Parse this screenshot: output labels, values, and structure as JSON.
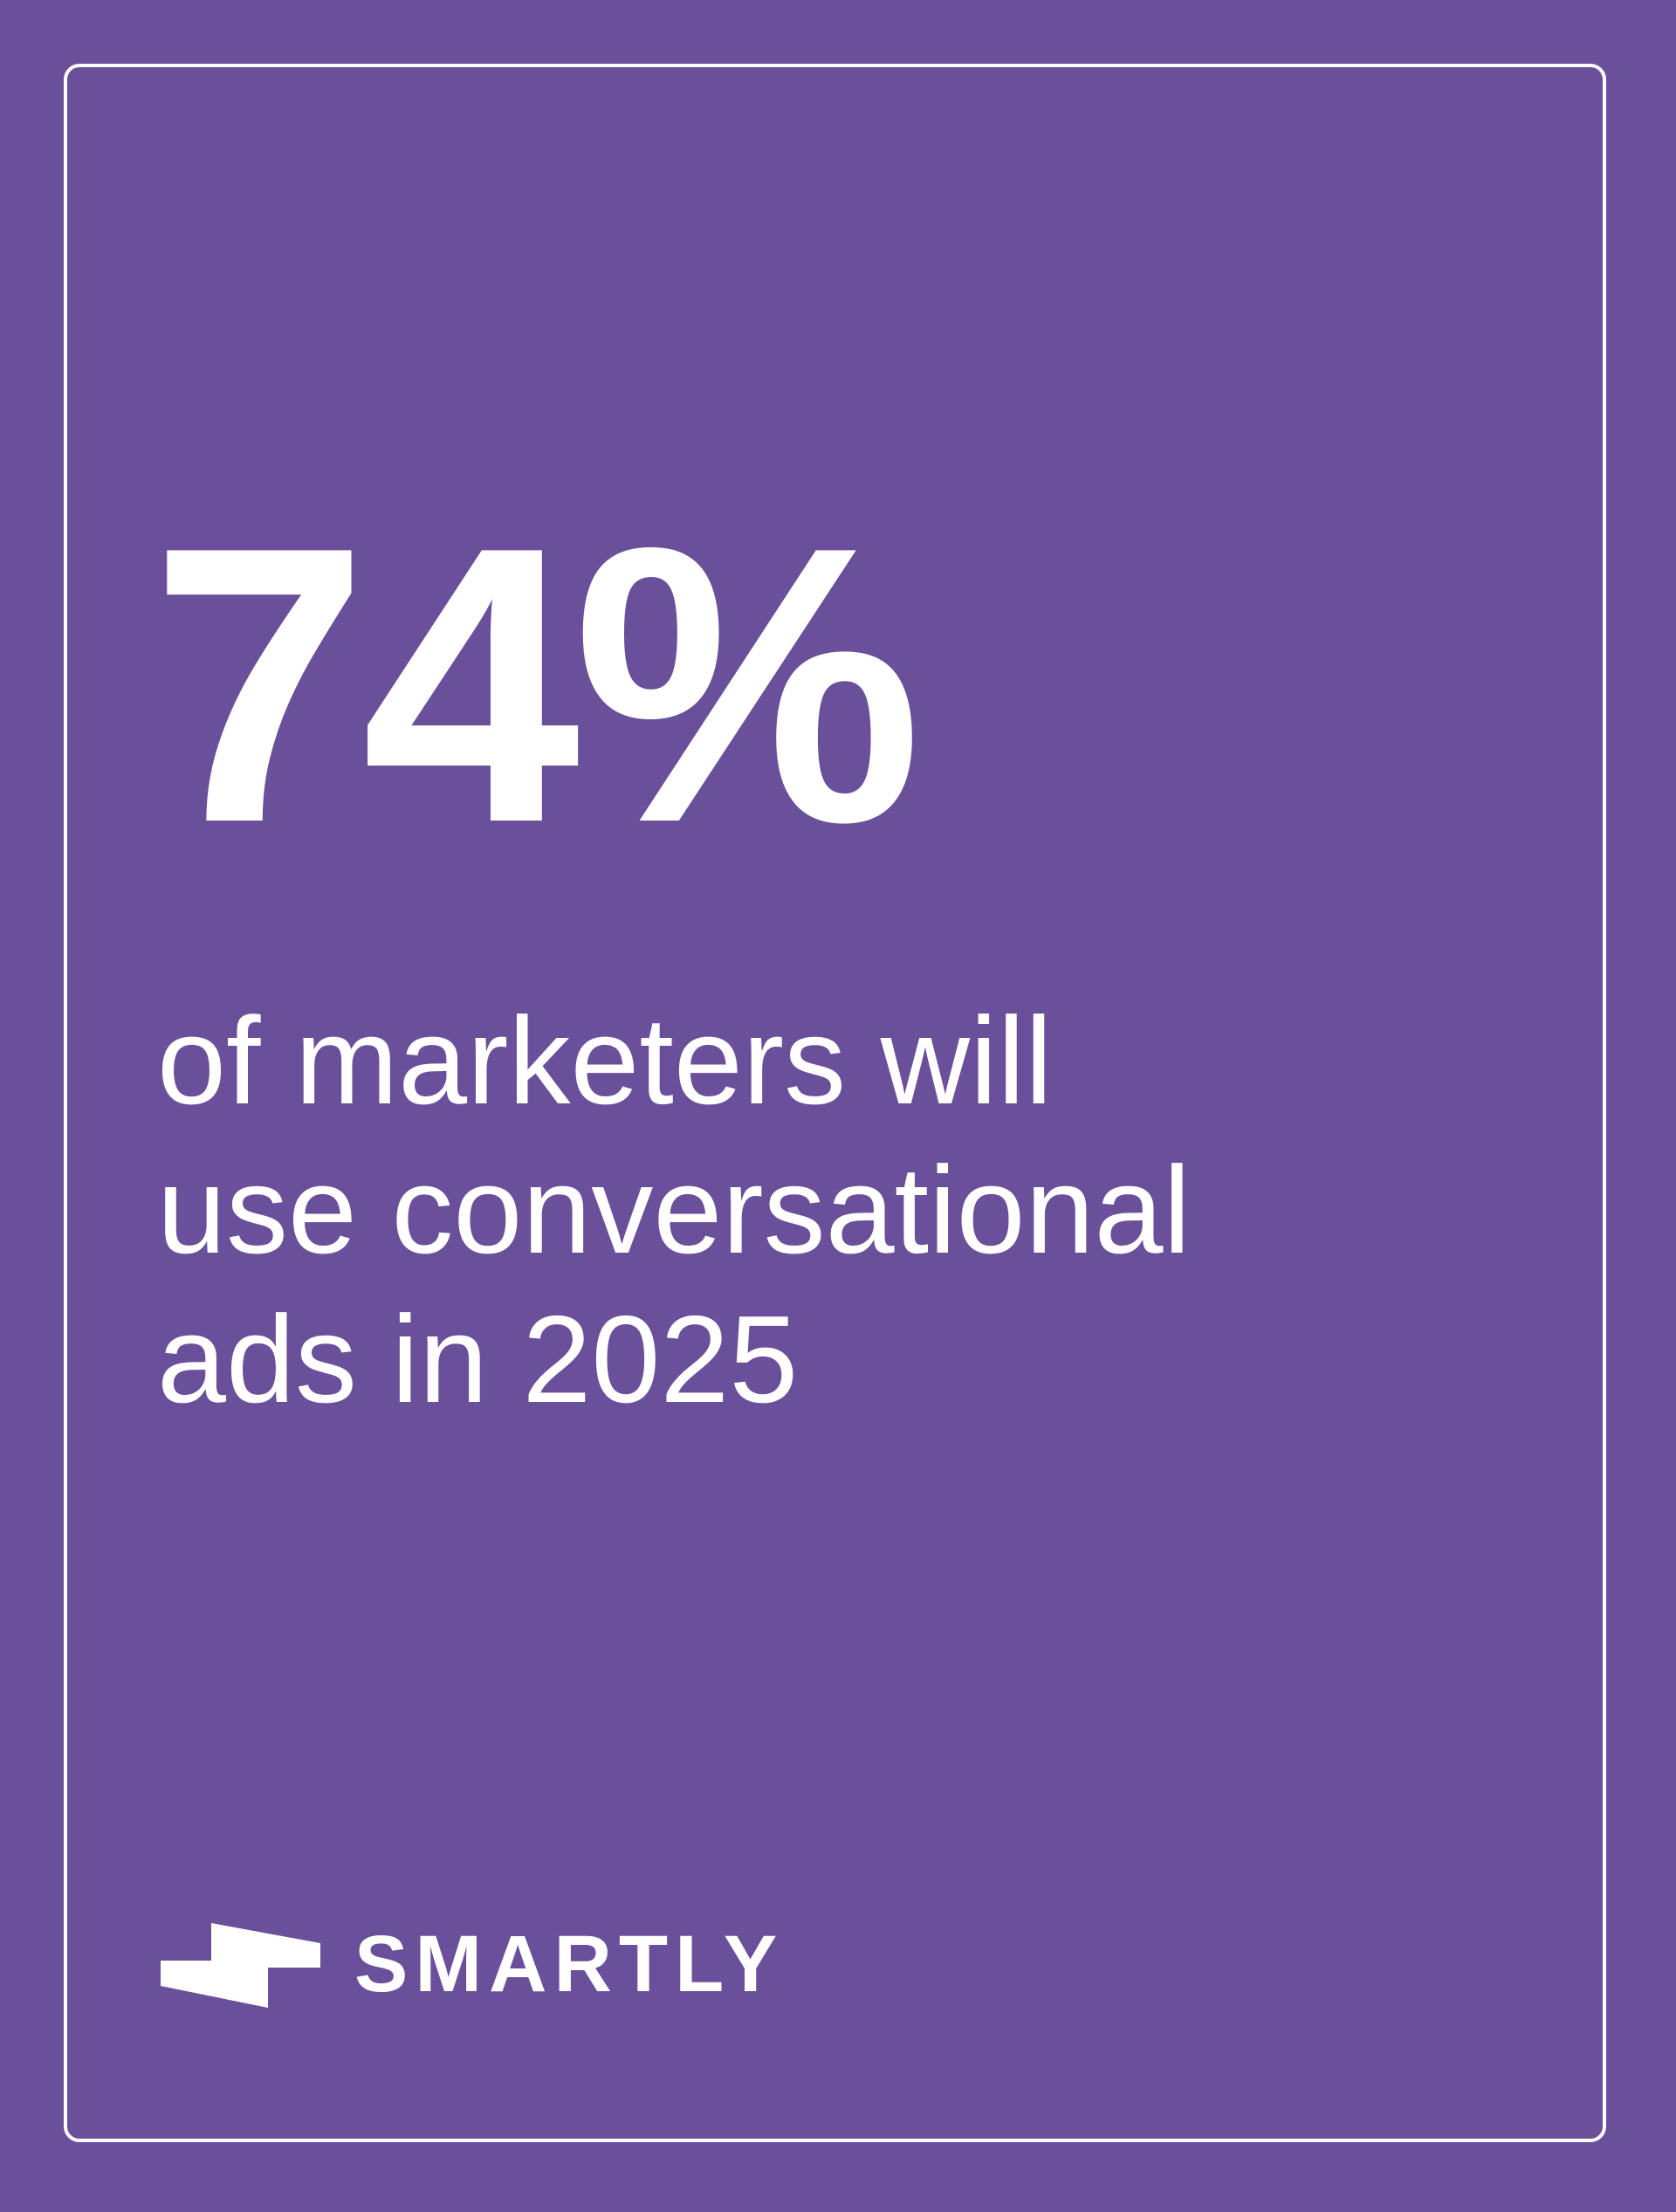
{
  "stat": "74%",
  "description": [
    "of marketers will",
    "use conversational",
    "ads in 2025"
  ],
  "logo": "SMARTLY"
}
